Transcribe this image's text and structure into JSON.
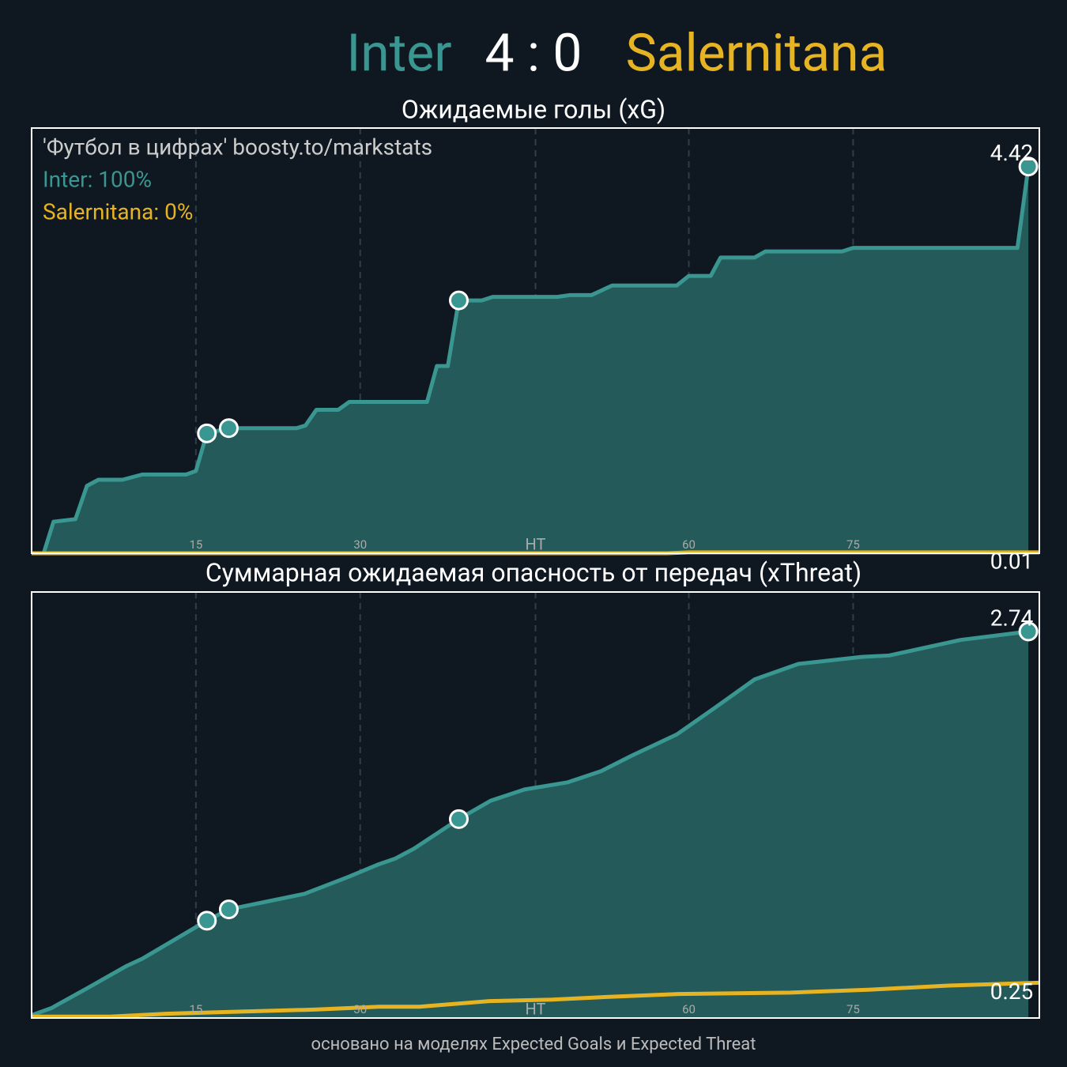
{
  "header": {
    "home": "Inter",
    "score": "4 : 0",
    "away": "Salernitana"
  },
  "chart_data": [
    {
      "type": "line",
      "title": "Ожидаемые голы (xG)",
      "annotations": [
        "'Футбол в цифрах' boosty.to/markstats",
        "Inter: 100%",
        "Salernitana: 0%"
      ],
      "xlim": [
        0,
        92
      ],
      "ylim": [
        0,
        4.86
      ],
      "xticks": [
        15,
        30,
        {
          "value": 46,
          "label": "HT"
        },
        60,
        75
      ],
      "grid": true,
      "goals": {
        "x": [
          16,
          18,
          39,
          91
        ]
      },
      "series": [
        {
          "name": "Inter",
          "color": "#3a9690",
          "fill": "#245a5a",
          "x": [
            0,
            1.1,
            2,
            4,
            5.05,
            6.1,
            8.3,
            10.1,
            14.1,
            15,
            16,
            18,
            24.2,
            25,
            26,
            28,
            29,
            36.1,
            37,
            38,
            39,
            41.1,
            42.1,
            48,
            49.1,
            51.1,
            53,
            58.9,
            60,
            62,
            62.9,
            66,
            67,
            74,
            75,
            90,
            91
          ],
          "values": [
            0,
            0,
            0.36,
            0.39,
            0.77,
            0.84,
            0.84,
            0.9,
            0.9,
            0.94,
            1.37,
            1.43,
            1.43,
            1.46,
            1.64,
            1.64,
            1.73,
            1.73,
            2.14,
            2.14,
            2.89,
            2.89,
            2.93,
            2.93,
            2.95,
            2.95,
            3.06,
            3.06,
            3.17,
            3.17,
            3.38,
            3.38,
            3.45,
            3.45,
            3.49,
            3.49,
            4.42
          ]
        },
        {
          "name": "Salernitana",
          "color": "#e6b422",
          "x": [
            0,
            58,
            60,
            92
          ],
          "values": [
            0,
            0,
            0.01,
            0.01
          ]
        }
      ]
    },
    {
      "type": "line",
      "title": "Суммарная ожидаемая опасность от передач (xThreat)",
      "xlim": [
        0,
        92
      ],
      "ylim": [
        0,
        3.02
      ],
      "xticks": [
        15,
        30,
        {
          "value": 46,
          "label": "HT"
        },
        60,
        75
      ],
      "grid": true,
      "goals": {
        "x": [
          16,
          18,
          39,
          91
        ]
      },
      "series": [
        {
          "name": "Inter",
          "color": "#3a9690",
          "fill": "#245a5a",
          "x": [
            0,
            1.8,
            5.05,
            8.7,
            10.1,
            16,
            18,
            24.9,
            28.9,
            31.7,
            33.2,
            34.9,
            39,
            41.9,
            45,
            48.9,
            52,
            54.8,
            58.9,
            62.4,
            66,
            70,
            75.8,
            78.3,
            84.8,
            91
          ],
          "values": [
            0.02,
            0.07,
            0.21,
            0.37,
            0.42,
            0.69,
            0.77,
            0.88,
            1.0,
            1.09,
            1.13,
            1.2,
            1.41,
            1.54,
            1.62,
            1.67,
            1.75,
            1.86,
            2.01,
            2.2,
            2.4,
            2.51,
            2.56,
            2.57,
            2.68,
            2.74
          ]
        },
        {
          "name": "Salernitana",
          "color": "#e6b422",
          "x": [
            0,
            7.2,
            12.3,
            16.6,
            26,
            28.9,
            31.7,
            35.4,
            41.8,
            47.5,
            52.7,
            59.1,
            69.3,
            76.4,
            83.7,
            92
          ],
          "values": [
            0.01,
            0.01,
            0.03,
            0.04,
            0.06,
            0.07,
            0.08,
            0.08,
            0.12,
            0.13,
            0.15,
            0.17,
            0.18,
            0.2,
            0.23,
            0.25
          ]
        }
      ]
    }
  ],
  "footer": "основано на моделях Expected Goals и Expected Threat"
}
